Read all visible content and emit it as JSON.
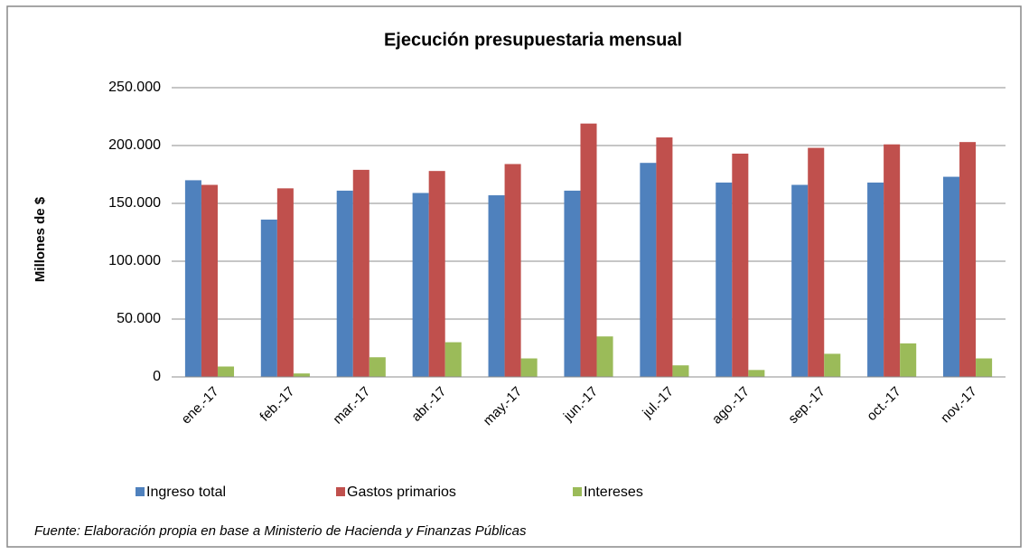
{
  "chart_data": {
    "type": "bar",
    "title": "Ejecución presupuestaria  mensual",
    "y_label": "Millones de $",
    "source": "Fuente: Elaboración propia en base a Ministerio de Hacienda y Finanzas Públicas",
    "categories": [
      "ene.-17",
      "feb.-17",
      "mar.-17",
      "abr.-17",
      "may.-17",
      "jun.-17",
      "jul.-17",
      "ago.-17",
      "sep.-17",
      "oct.-17",
      "nov.-17"
    ],
    "series": [
      {
        "name": "Ingreso total",
        "color": "#4f81bd",
        "values": [
          170000,
          136000,
          161000,
          159000,
          157000,
          161000,
          185000,
          168000,
          166000,
          168000,
          173000
        ]
      },
      {
        "name": "Gastos primarios",
        "color": "#c0504d",
        "values": [
          166000,
          163000,
          179000,
          178000,
          184000,
          219000,
          207000,
          193000,
          198000,
          201000,
          203000
        ]
      },
      {
        "name": "Intereses",
        "color": "#9bbb59",
        "values": [
          9000,
          3000,
          17000,
          30000,
          16000,
          35000,
          10000,
          6000,
          20000,
          29000,
          16000
        ]
      }
    ],
    "ylim": [
      0,
      250000
    ],
    "yticks": [
      0,
      {
        "value": 50000,
        "label": "50.000"
      },
      {
        "value": 100000,
        "label": "100.000"
      },
      {
        "value": 150000,
        "label": "150.000"
      },
      {
        "value": 200000,
        "label": "200.000"
      },
      {
        "value": 250000,
        "label": "250.000"
      }
    ],
    "grid": true,
    "legend": "bottom"
  }
}
